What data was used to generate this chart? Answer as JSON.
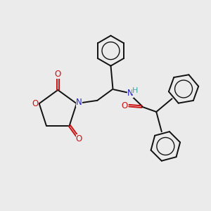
{
  "bg_color": "#ebebeb",
  "bond_color": "#111111",
  "N_color": "#2222cc",
  "O_color": "#cc1111",
  "NH_color": "#33aaaa",
  "figsize": [
    3.0,
    3.0
  ],
  "dpi": 100,
  "xlim": [
    0,
    10
  ],
  "ylim": [
    0,
    10
  ]
}
